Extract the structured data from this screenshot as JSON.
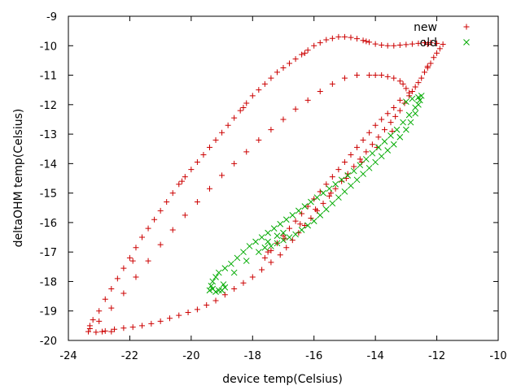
{
  "chart_data": {
    "type": "scatter",
    "title": "",
    "xlabel": "device temp(Celsius)",
    "ylabel": "deltaOHM temp(Celsius)",
    "xlim": [
      -24,
      -10
    ],
    "ylim": [
      -20,
      -9
    ],
    "xticks": [
      -24,
      -22,
      -20,
      -18,
      -16,
      -14,
      -12,
      -10
    ],
    "yticks": [
      -20,
      -19,
      -18,
      -17,
      -16,
      -15,
      -14,
      -13,
      -12,
      -11,
      -10,
      -9
    ],
    "grid": false,
    "legend_position": "top-right",
    "series": [
      {
        "name": "new",
        "marker": "plus",
        "color": "#cc0000",
        "points": [
          [
            -23.35,
            -19.7
          ],
          [
            -23.3,
            -19.6
          ],
          [
            -23.2,
            -19.3
          ],
          [
            -23.0,
            -19.0
          ],
          [
            -22.8,
            -18.6
          ],
          [
            -22.6,
            -18.25
          ],
          [
            -22.4,
            -17.9
          ],
          [
            -22.2,
            -17.55
          ],
          [
            -22.0,
            -17.2
          ],
          [
            -21.8,
            -16.85
          ],
          [
            -21.6,
            -16.5
          ],
          [
            -21.4,
            -16.2
          ],
          [
            -21.2,
            -15.9
          ],
          [
            -21.0,
            -15.6
          ],
          [
            -20.8,
            -15.3
          ],
          [
            -20.6,
            -15.0
          ],
          [
            -20.4,
            -14.7
          ],
          [
            -20.2,
            -14.45
          ],
          [
            -20.0,
            -14.2
          ],
          [
            -19.8,
            -13.95
          ],
          [
            -19.6,
            -13.7
          ],
          [
            -19.4,
            -13.45
          ],
          [
            -19.2,
            -13.2
          ],
          [
            -19.0,
            -12.95
          ],
          [
            -18.8,
            -12.7
          ],
          [
            -18.6,
            -12.45
          ],
          [
            -18.4,
            -12.2
          ],
          [
            -18.2,
            -11.95
          ],
          [
            -18.0,
            -11.7
          ],
          [
            -17.8,
            -11.5
          ],
          [
            -17.6,
            -11.3
          ],
          [
            -17.4,
            -11.1
          ],
          [
            -17.2,
            -10.9
          ],
          [
            -17.0,
            -10.75
          ],
          [
            -16.8,
            -10.6
          ],
          [
            -16.6,
            -10.45
          ],
          [
            -16.4,
            -10.3
          ],
          [
            -16.2,
            -10.15
          ],
          [
            -16.0,
            -10.0
          ],
          [
            -15.8,
            -9.9
          ],
          [
            -15.6,
            -9.8
          ],
          [
            -15.4,
            -9.75
          ],
          [
            -15.2,
            -9.7
          ],
          [
            -15.0,
            -9.7
          ],
          [
            -14.8,
            -9.72
          ],
          [
            -14.6,
            -9.76
          ],
          [
            -14.4,
            -9.82
          ],
          [
            -14.2,
            -9.88
          ],
          [
            -14.0,
            -9.94
          ],
          [
            -13.8,
            -9.98
          ],
          [
            -13.6,
            -10.0
          ],
          [
            -13.4,
            -10.0
          ],
          [
            -13.2,
            -9.98
          ],
          [
            -13.0,
            -9.96
          ],
          [
            -12.8,
            -9.94
          ],
          [
            -12.6,
            -9.92
          ],
          [
            -12.4,
            -9.9
          ],
          [
            -12.2,
            -9.9
          ],
          [
            -12.0,
            -9.92
          ],
          [
            -11.8,
            -9.95
          ],
          [
            -11.9,
            -10.1
          ],
          [
            -12.0,
            -10.25
          ],
          [
            -12.1,
            -10.4
          ],
          [
            -12.2,
            -10.6
          ],
          [
            -12.3,
            -10.75
          ],
          [
            -12.4,
            -10.9
          ],
          [
            -12.5,
            -11.1
          ],
          [
            -12.6,
            -11.25
          ],
          [
            -12.7,
            -11.4
          ],
          [
            -12.8,
            -11.55
          ],
          [
            -12.9,
            -11.7
          ],
          [
            -13.05,
            -11.95
          ],
          [
            -13.2,
            -12.2
          ],
          [
            -13.35,
            -12.4
          ],
          [
            -13.5,
            -12.6
          ],
          [
            -13.7,
            -12.85
          ],
          [
            -13.9,
            -13.1
          ],
          [
            -14.1,
            -13.35
          ],
          [
            -14.3,
            -13.6
          ],
          [
            -14.5,
            -13.85
          ],
          [
            -14.7,
            -14.1
          ],
          [
            -14.9,
            -14.35
          ],
          [
            -15.1,
            -14.6
          ],
          [
            -15.3,
            -14.85
          ],
          [
            -15.5,
            -15.1
          ],
          [
            -15.7,
            -15.35
          ],
          [
            -15.9,
            -15.6
          ],
          [
            -16.1,
            -15.85
          ],
          [
            -16.3,
            -16.1
          ],
          [
            -16.5,
            -16.35
          ],
          [
            -16.7,
            -16.6
          ],
          [
            -16.9,
            -16.85
          ],
          [
            -17.1,
            -17.1
          ],
          [
            -17.4,
            -17.35
          ],
          [
            -17.7,
            -17.6
          ],
          [
            -18.0,
            -17.85
          ],
          [
            -18.3,
            -18.05
          ],
          [
            -18.6,
            -18.25
          ],
          [
            -18.9,
            -18.45
          ],
          [
            -19.2,
            -18.65
          ],
          [
            -19.5,
            -18.8
          ],
          [
            -19.8,
            -18.95
          ],
          [
            -20.1,
            -19.05
          ],
          [
            -20.4,
            -19.15
          ],
          [
            -20.7,
            -19.25
          ],
          [
            -21.0,
            -19.35
          ],
          [
            -21.3,
            -19.43
          ],
          [
            -21.6,
            -19.5
          ],
          [
            -21.9,
            -19.55
          ],
          [
            -22.2,
            -19.58
          ],
          [
            -22.5,
            -19.62
          ],
          [
            -22.8,
            -19.68
          ],
          [
            -23.1,
            -19.72
          ],
          [
            -22.9,
            -19.7
          ],
          [
            -22.6,
            -19.7
          ],
          [
            -23.3,
            -19.5
          ],
          [
            -21.9,
            -17.3
          ],
          [
            -20.3,
            -14.6
          ],
          [
            -18.3,
            -12.1
          ],
          [
            -16.3,
            -10.25
          ],
          [
            -14.3,
            -9.85
          ],
          [
            -12.3,
            -9.95
          ],
          [
            -12.3,
            -10.7
          ],
          [
            -14.2,
            -11.0
          ],
          [
            -14.6,
            -11.0
          ],
          [
            -15.0,
            -11.1
          ],
          [
            -15.4,
            -11.3
          ],
          [
            -15.8,
            -11.55
          ],
          [
            -16.2,
            -11.85
          ],
          [
            -16.6,
            -12.15
          ],
          [
            -17.0,
            -12.5
          ],
          [
            -17.4,
            -12.85
          ],
          [
            -17.8,
            -13.2
          ],
          [
            -18.2,
            -13.6
          ],
          [
            -18.6,
            -14.0
          ],
          [
            -19.0,
            -14.4
          ],
          [
            -19.4,
            -14.85
          ],
          [
            -19.8,
            -15.3
          ],
          [
            -20.2,
            -15.75
          ],
          [
            -20.6,
            -16.25
          ],
          [
            -21.0,
            -16.75
          ],
          [
            -21.4,
            -17.3
          ],
          [
            -21.8,
            -17.85
          ],
          [
            -22.2,
            -18.4
          ],
          [
            -22.6,
            -18.9
          ],
          [
            -23.0,
            -19.35
          ],
          [
            -14.0,
            -11.0
          ],
          [
            -13.8,
            -11.0
          ],
          [
            -13.6,
            -11.05
          ],
          [
            -13.4,
            -11.1
          ],
          [
            -13.2,
            -11.2
          ],
          [
            -13.1,
            -11.3
          ],
          [
            -13.0,
            -11.45
          ],
          [
            -12.9,
            -11.6
          ],
          [
            -13.2,
            -11.85
          ],
          [
            -13.4,
            -12.1
          ],
          [
            -13.6,
            -12.3
          ],
          [
            -13.8,
            -12.5
          ],
          [
            -14.0,
            -12.7
          ],
          [
            -14.2,
            -12.95
          ],
          [
            -14.4,
            -13.2
          ],
          [
            -14.6,
            -13.45
          ],
          [
            -14.8,
            -13.7
          ],
          [
            -15.0,
            -13.95
          ],
          [
            -15.2,
            -14.2
          ],
          [
            -15.4,
            -14.45
          ],
          [
            -15.6,
            -14.7
          ],
          [
            -15.8,
            -14.95
          ],
          [
            -16.0,
            -15.2
          ],
          [
            -16.2,
            -15.45
          ],
          [
            -16.4,
            -15.7
          ],
          [
            -16.6,
            -15.95
          ],
          [
            -16.8,
            -16.2
          ],
          [
            -17.0,
            -16.45
          ],
          [
            -17.2,
            -16.7
          ],
          [
            -17.4,
            -16.95
          ],
          [
            -17.6,
            -17.2
          ],
          [
            -17.5,
            -17.0
          ],
          [
            -16.95,
            -16.55
          ],
          [
            -16.45,
            -16.05
          ],
          [
            -15.95,
            -15.55
          ],
          [
            -15.45,
            -15.0
          ],
          [
            -14.95,
            -14.5
          ],
          [
            -14.45,
            -13.95
          ],
          [
            -13.95,
            -13.45
          ],
          [
            -13.45,
            -12.9
          ]
        ]
      },
      {
        "name": "old",
        "marker": "cross",
        "color": "#00aa00",
        "points": [
          [
            -19.4,
            -18.3
          ],
          [
            -19.35,
            -18.15
          ],
          [
            -19.3,
            -18.0
          ],
          [
            -19.2,
            -17.85
          ],
          [
            -19.1,
            -17.7
          ],
          [
            -19.0,
            -18.3
          ],
          [
            -18.9,
            -18.2
          ],
          [
            -18.9,
            -17.55
          ],
          [
            -18.7,
            -17.4
          ],
          [
            -18.5,
            -17.2
          ],
          [
            -18.3,
            -17.0
          ],
          [
            -18.1,
            -16.8
          ],
          [
            -17.9,
            -16.65
          ],
          [
            -17.7,
            -16.5
          ],
          [
            -17.5,
            -16.35
          ],
          [
            -17.3,
            -16.2
          ],
          [
            -17.1,
            -16.05
          ],
          [
            -16.9,
            -15.9
          ],
          [
            -16.7,
            -15.75
          ],
          [
            -16.5,
            -15.6
          ],
          [
            -16.3,
            -15.45
          ],
          [
            -16.1,
            -15.3
          ],
          [
            -15.9,
            -15.15
          ],
          [
            -15.7,
            -15.0
          ],
          [
            -15.5,
            -14.85
          ],
          [
            -15.3,
            -14.7
          ],
          [
            -15.1,
            -14.55
          ],
          [
            -14.9,
            -14.4
          ],
          [
            -14.7,
            -14.25
          ],
          [
            -14.5,
            -14.05
          ],
          [
            -14.3,
            -13.85
          ],
          [
            -14.1,
            -13.65
          ],
          [
            -13.9,
            -13.45
          ],
          [
            -13.7,
            -13.25
          ],
          [
            -13.5,
            -13.05
          ],
          [
            -13.3,
            -12.85
          ],
          [
            -13.1,
            -12.6
          ],
          [
            -12.9,
            -12.35
          ],
          [
            -12.7,
            -12.1
          ],
          [
            -12.55,
            -11.85
          ],
          [
            -12.5,
            -11.7
          ],
          [
            -12.6,
            -11.75
          ],
          [
            -12.8,
            -11.8
          ],
          [
            -13.0,
            -11.9
          ],
          [
            -12.6,
            -12.0
          ],
          [
            -12.7,
            -12.3
          ],
          [
            -12.85,
            -12.6
          ],
          [
            -13.0,
            -12.85
          ],
          [
            -13.2,
            -13.1
          ],
          [
            -13.4,
            -13.35
          ],
          [
            -13.6,
            -13.55
          ],
          [
            -13.8,
            -13.75
          ],
          [
            -14.0,
            -13.95
          ],
          [
            -14.2,
            -14.15
          ],
          [
            -14.4,
            -14.35
          ],
          [
            -14.6,
            -14.55
          ],
          [
            -14.8,
            -14.75
          ],
          [
            -15.0,
            -14.95
          ],
          [
            -15.2,
            -15.15
          ],
          [
            -15.4,
            -15.35
          ],
          [
            -15.6,
            -15.55
          ],
          [
            -15.8,
            -15.75
          ],
          [
            -16.0,
            -15.95
          ],
          [
            -16.2,
            -16.1
          ],
          [
            -16.4,
            -16.25
          ],
          [
            -16.6,
            -16.4
          ],
          [
            -16.8,
            -16.5
          ],
          [
            -17.0,
            -16.6
          ],
          [
            -17.2,
            -16.7
          ],
          [
            -17.4,
            -16.8
          ],
          [
            -17.6,
            -16.85
          ],
          [
            -17.5,
            -16.65
          ],
          [
            -17.2,
            -16.45
          ],
          [
            -17.0,
            -16.35
          ],
          [
            -19.3,
            -18.25
          ],
          [
            -19.2,
            -18.35
          ],
          [
            -19.1,
            -18.3
          ],
          [
            -18.95,
            -18.1
          ],
          [
            -18.6,
            -17.7
          ],
          [
            -18.2,
            -17.3
          ],
          [
            -17.8,
            -17.0
          ]
        ]
      }
    ]
  }
}
